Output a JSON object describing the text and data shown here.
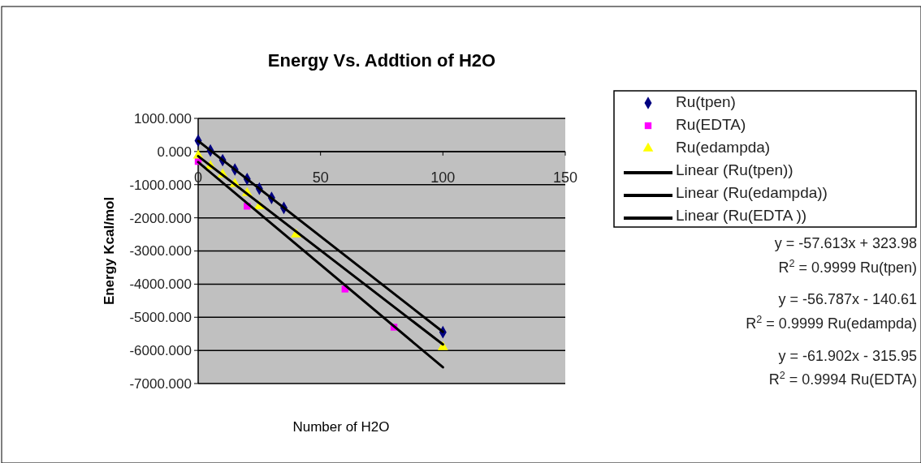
{
  "chart_data": {
    "type": "scatter",
    "title": "Energy Vs. Addtion of H2O",
    "xlabel": "Number of H2O",
    "ylabel": "Energy Kcal/mol",
    "xlim": [
      0,
      150
    ],
    "xticks": [
      0,
      50,
      100,
      150
    ],
    "ylim": [
      -7000,
      1000
    ],
    "yticks": [
      {
        "value": 1000,
        "label": "1000.000"
      },
      {
        "value": 0,
        "label": "0.000"
      },
      {
        "value": -1000,
        "label": "-1000.000"
      },
      {
        "value": -2000,
        "label": "-2000.000"
      },
      {
        "value": -3000,
        "label": "-3000.000"
      },
      {
        "value": -4000,
        "label": "-4000.000"
      },
      {
        "value": -5000,
        "label": "-5000.000"
      },
      {
        "value": -6000,
        "label": "-6000.000"
      },
      {
        "value": -7000,
        "label": "-7000.000"
      }
    ],
    "grid": "y",
    "legend": "right",
    "series": [
      {
        "name": "Ru(tpen)",
        "color": "#000080",
        "marker": "diamond",
        "x": [
          0,
          5,
          10,
          15,
          20,
          25,
          30,
          35,
          100
        ],
        "values": [
          330,
          30,
          -260,
          -540,
          -830,
          -1120,
          -1400,
          -1700,
          -5450
        ]
      },
      {
        "name": "Ru(EDTA)",
        "color": "#ff00ff",
        "marker": "square",
        "x": [
          0,
          20,
          60,
          80
        ],
        "values": [
          -300,
          -1650,
          -4150,
          -5300
        ]
      },
      {
        "name": "Ru(edampda)",
        "color": "#ffff00",
        "marker": "triangle",
        "x": [
          0,
          5,
          10,
          15,
          20,
          25,
          40,
          100
        ],
        "values": [
          -120,
          -440,
          -690,
          -980,
          -1250,
          -1650,
          -2500,
          -5900
        ]
      },
      {
        "name": "Linear (Ru(tpen))",
        "type": "line",
        "color": "#000000",
        "x": [
          0,
          100
        ],
        "values": [
          320,
          -5440
        ]
      },
      {
        "name": "Linear (Ru(edampda))",
        "type": "line",
        "color": "#000000",
        "x": [
          0,
          100
        ],
        "values": [
          -140,
          -5820
        ]
      },
      {
        "name": "Linear (Ru(EDTA ))",
        "type": "line",
        "color": "#000000",
        "x": [
          0,
          100
        ],
        "values": [
          -320,
          -6510
        ]
      }
    ],
    "annotations": [
      "y = -57.613x + 323.98",
      "R$^{2}$ = 0.9999 Ru(tpen)",
      "y = -56.787x - 140.61",
      "R$^{2}$ = 0.9999 Ru(edampda)",
      "y = -61.902x - 315.95",
      "R$^{2}$ = 0.9994 Ru(EDTA)"
    ]
  }
}
